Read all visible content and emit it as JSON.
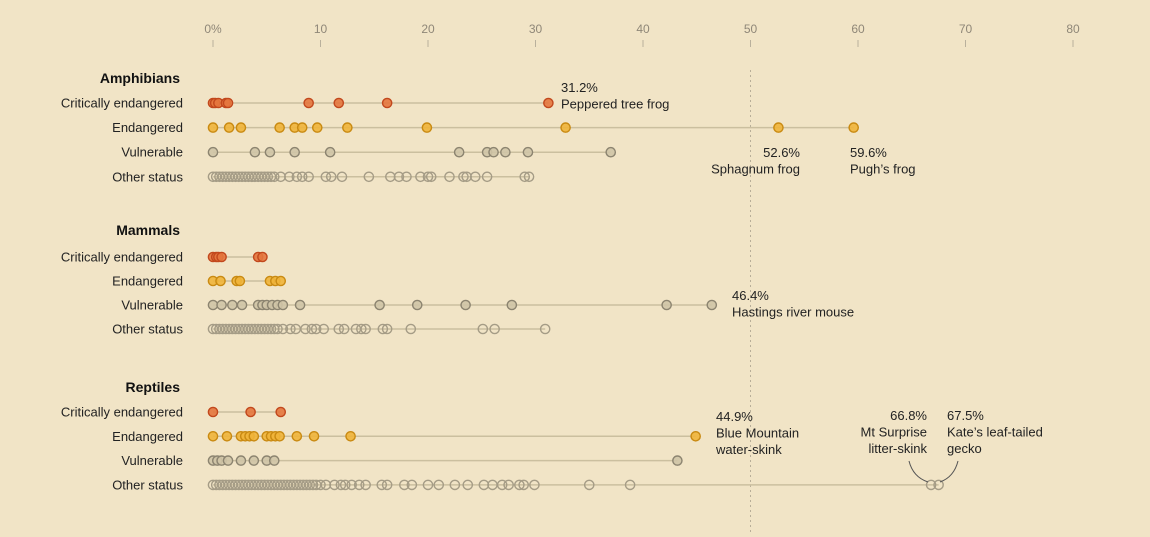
{
  "chart_data": {
    "type": "scatter",
    "x_range": [
      0,
      80
    ],
    "x_ticks": [
      {
        "value": 0,
        "label": "0%"
      },
      {
        "value": 10,
        "label": "10"
      },
      {
        "value": 20,
        "label": "20"
      },
      {
        "value": 30,
        "label": "30"
      },
      {
        "value": 40,
        "label": "40"
      },
      {
        "value": 50,
        "label": "50"
      },
      {
        "value": 60,
        "label": "60"
      },
      {
        "value": 70,
        "label": "70"
      },
      {
        "value": 80,
        "label": "80"
      }
    ],
    "reference_line": 50,
    "status_colors": {
      "critically": {
        "fill": "#e4763d",
        "stroke": "#c2481d"
      },
      "endangered": {
        "fill": "#f0b43a",
        "stroke": "#c98a12"
      },
      "vulnerable": {
        "fill": "#cfc4a6",
        "stroke": "#8c8470"
      },
      "other": {
        "fill": "none",
        "stroke": "#a59c86"
      }
    },
    "groups": [
      {
        "title": "Amphibians",
        "rows": [
          {
            "label": "Critically endangered",
            "status": "critically",
            "values": [
              0,
              0.2,
              0.5,
              1.2,
              1.4,
              8.9,
              11.7,
              16.2,
              31.2
            ]
          },
          {
            "label": "Endangered",
            "status": "endangered",
            "values": [
              0,
              1.5,
              2.6,
              6.2,
              7.6,
              8.3,
              9.7,
              12.5,
              19.9,
              32.8,
              52.6,
              59.6
            ]
          },
          {
            "label": "Vulnerable",
            "status": "vulnerable",
            "values": [
              0,
              3.9,
              5.3,
              7.6,
              10.9,
              22.9,
              25.5,
              26.1,
              27.2,
              29.3,
              37.0
            ]
          },
          {
            "label": "Other status",
            "status": "other",
            "values": [
              0,
              0.3,
              0.6,
              0.9,
              1.2,
              1.5,
              1.8,
              2.1,
              2.4,
              2.7,
              3.0,
              3.3,
              3.6,
              3.9,
              4.2,
              4.5,
              4.8,
              5.1,
              5.4,
              5.7,
              6.3,
              7.1,
              7.8,
              8.3,
              8.9,
              10.5,
              11.0,
              12.0,
              14.5,
              16.5,
              17.3,
              18.0,
              19.3,
              20.0,
              20.3,
              22.0,
              23.3,
              23.6,
              24.4,
              25.5,
              29.0,
              29.4
            ]
          }
        ]
      },
      {
        "title": "Mammals",
        "rows": [
          {
            "label": "Critically endangered",
            "status": "critically",
            "values": [
              0,
              0.3,
              0.5,
              0.8,
              4.2,
              4.6
            ]
          },
          {
            "label": "Endangered",
            "status": "endangered",
            "values": [
              0,
              0.7,
              2.2,
              2.5,
              5.3,
              5.8,
              6.3
            ]
          },
          {
            "label": "Vulnerable",
            "status": "vulnerable",
            "values": [
              0,
              0.8,
              1.8,
              2.7,
              4.2,
              4.6,
              5.0,
              5.5,
              6.0,
              6.5,
              8.1,
              15.5,
              19.0,
              23.5,
              27.8,
              42.2,
              46.4
            ]
          },
          {
            "label": "Other status",
            "status": "other",
            "values": [
              0,
              0.3,
              0.6,
              0.9,
              1.2,
              1.5,
              1.8,
              2.1,
              2.4,
              2.7,
              3.0,
              3.3,
              3.6,
              3.9,
              4.2,
              4.5,
              4.8,
              5.1,
              5.4,
              5.7,
              6.0,
              6.5,
              7.2,
              7.7,
              8.6,
              9.2,
              9.6,
              10.3,
              11.7,
              12.2,
              13.3,
              13.8,
              14.2,
              15.8,
              16.2,
              18.4,
              25.1,
              26.2,
              30.9
            ]
          }
        ]
      },
      {
        "title": "Reptiles",
        "rows": [
          {
            "label": "Critically endangered",
            "status": "critically",
            "values": [
              0,
              3.5,
              6.3
            ]
          },
          {
            "label": "Endangered",
            "status": "endangered",
            "values": [
              0,
              1.3,
              2.6,
              3.0,
              3.4,
              3.8,
              5.0,
              5.4,
              5.8,
              6.2,
              7.8,
              9.4,
              12.8,
              44.9
            ]
          },
          {
            "label": "Vulnerable",
            "status": "vulnerable",
            "values": [
              0,
              0.4,
              0.8,
              1.4,
              2.6,
              3.8,
              5.0,
              5.7,
              43.2
            ]
          },
          {
            "label": "Other status",
            "status": "other",
            "values": [
              0,
              0.3,
              0.6,
              0.9,
              1.2,
              1.5,
              1.8,
              2.1,
              2.4,
              2.7,
              3.0,
              3.3,
              3.6,
              3.9,
              4.2,
              4.5,
              4.8,
              5.1,
              5.4,
              5.7,
              6.0,
              6.3,
              6.6,
              6.9,
              7.2,
              7.5,
              7.8,
              8.1,
              8.4,
              8.7,
              9.0,
              9.3,
              9.6,
              10.0,
              10.5,
              11.3,
              11.9,
              12.3,
              12.9,
              13.6,
              14.2,
              15.7,
              16.2,
              17.8,
              18.5,
              20.0,
              21.0,
              22.5,
              23.7,
              25.2,
              26.0,
              26.9,
              27.5,
              28.5,
              28.9,
              29.9,
              35.0,
              38.8,
              66.8,
              67.5
            ]
          }
        ]
      }
    ],
    "annotations": [
      {
        "id": "peppered-tree-frog",
        "value_text": "31.2%",
        "name_lines": [
          "Peppered tree frog"
        ]
      },
      {
        "id": "sphagnum-frog",
        "value_text": "52.6%",
        "name_lines": [
          "Sphagnum frog"
        ]
      },
      {
        "id": "pughs-frog",
        "value_text": "59.6%",
        "name_lines": [
          "Pugh’s frog"
        ]
      },
      {
        "id": "hastings-river-mouse",
        "value_text": "46.4%",
        "name_lines": [
          "Hastings river mouse"
        ]
      },
      {
        "id": "blue-mountain-water-skink",
        "value_text": "44.9%",
        "name_lines": [
          "Blue Mountain",
          "water-skink"
        ]
      },
      {
        "id": "mt-surprise-litter-skink",
        "value_text": "66.8%",
        "name_lines": [
          "Mt Surprise",
          "litter-skink"
        ]
      },
      {
        "id": "kates-leaf-tailed-gecko",
        "value_text": "67.5%",
        "name_lines": [
          "Kate’s leaf-tailed",
          "gecko"
        ]
      }
    ]
  }
}
